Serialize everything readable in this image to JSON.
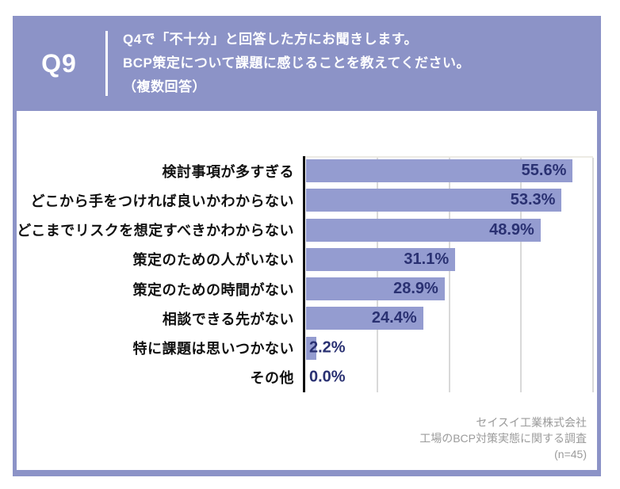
{
  "header": {
    "q_number": "Q9",
    "question_line1": "Q4で「不十分」と回答した方にお聞きします。",
    "question_line2": "BCP策定について課題に感じることを教えてください。",
    "question_line3": "（複数回答）"
  },
  "chart_data": {
    "type": "bar",
    "orientation": "horizontal",
    "categories": [
      "検討事項が多すぎる",
      "どこから手をつければ良いかわからない",
      "どこまでリスクを想定すべきかわからない",
      "策定のための人がいない",
      "策定のための時間がない",
      "相談できる先がない",
      "特に課題は思いつかない",
      "その他"
    ],
    "values": [
      55.6,
      53.3,
      48.9,
      31.1,
      28.9,
      24.4,
      2.2,
      0.0
    ],
    "value_labels": [
      "55.6%",
      "53.3%",
      "48.9%",
      "31.1%",
      "28.9%",
      "24.4%",
      "2.2%",
      "0.0%"
    ],
    "title": "",
    "xlabel": "",
    "ylabel": "",
    "xlim": [
      0,
      60
    ],
    "gridlines_pct": [
      15,
      30,
      45,
      60
    ],
    "grid": true,
    "legend": false,
    "value_label_inside_threshold": 10
  },
  "footer": {
    "line1": "セイスイ工業株式会社",
    "line2": "工場のBCP対策実態に関する調査",
    "line3": "(n=45)"
  },
  "colors": {
    "accent": "#8C93C7",
    "bar": "#949CD0",
    "value_text": "#2A3172",
    "grid": "#D9D9D9",
    "axis": "#111111",
    "source_text": "#9B9B9B"
  }
}
